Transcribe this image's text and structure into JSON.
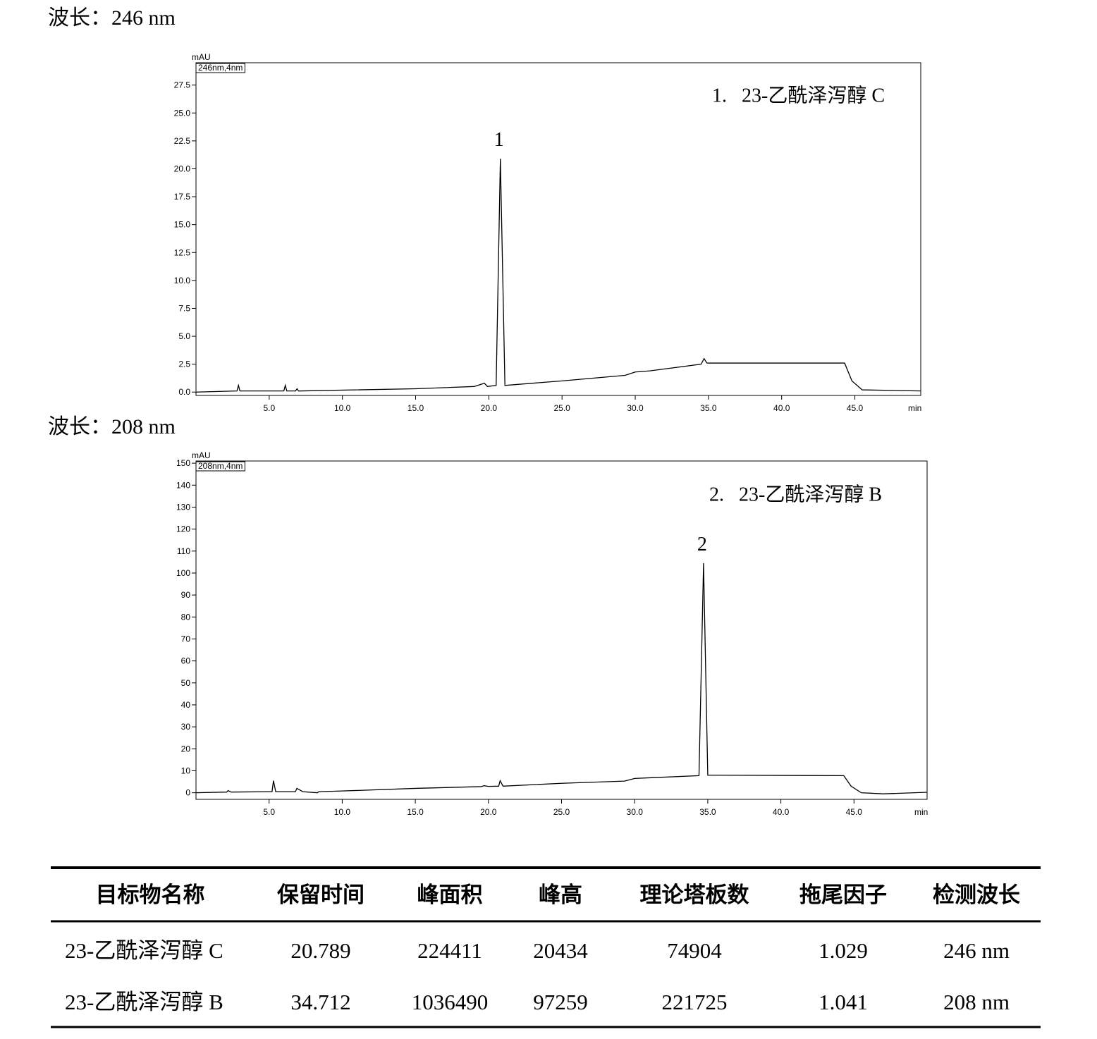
{
  "chart_data": [
    {
      "type": "line",
      "title": "波长：246 nm",
      "y_label": "mAU",
      "x_label": "min",
      "channel": "246nm,4nm",
      "annotation": "1.   23-乙酰泽泻醇 C",
      "peak_label": "1",
      "color": "#000000",
      "x": [
        0,
        2.8,
        2.9,
        3.0,
        6.0,
        6.1,
        6.2,
        6.8,
        6.9,
        7.0,
        15,
        19.0,
        19.7,
        19.9,
        20.5,
        20.789,
        21.1,
        25,
        29.3,
        30,
        31,
        34.5,
        34.7,
        34.9,
        35,
        44.3,
        44.8,
        45.5,
        49.5
      ],
      "values": [
        0.0,
        0.1,
        0.6,
        0.1,
        0.1,
        0.6,
        0.1,
        0.1,
        0.3,
        0.1,
        0.3,
        0.5,
        0.8,
        0.5,
        0.6,
        20.9,
        0.6,
        1.0,
        1.5,
        1.8,
        1.9,
        2.5,
        3.0,
        2.6,
        2.6,
        2.6,
        1.0,
        0.2,
        0.1
      ],
      "xlim": [
        0,
        49.5
      ],
      "ylim": [
        -0.3,
        29.5
      ],
      "xticks": [
        {
          "value": 5,
          "label": "5.0"
        },
        {
          "value": 10,
          "label": "10.0"
        },
        {
          "value": 15,
          "label": "15.0"
        },
        {
          "value": 20,
          "label": "20.0"
        },
        {
          "value": 25,
          "label": "25.0"
        },
        {
          "value": 30,
          "label": "30.0"
        },
        {
          "value": 35,
          "label": "35.0"
        },
        {
          "value": 40,
          "label": "40.0"
        },
        {
          "value": 45,
          "label": "45.0"
        }
      ],
      "yticks": [
        {
          "value": 0,
          "label": "0.0"
        },
        2.5,
        {
          "value": 5,
          "label": "5.0"
        },
        7.5,
        {
          "value": 10,
          "label": "10.0"
        },
        12.5,
        {
          "value": 15,
          "label": "15.0"
        },
        17.5,
        {
          "value": 20,
          "label": "20.0"
        },
        22.5,
        {
          "value": 25,
          "label": "25.0"
        },
        27.5
      ]
    },
    {
      "type": "line",
      "title": "波长：208 nm",
      "y_label": "mAU",
      "x_label": "min",
      "channel": "208nm,4nm",
      "annotation": "2.   23-乙酰泽泻醇 B",
      "peak_label": "2",
      "color": "#000000",
      "x": [
        0,
        2.1,
        2.2,
        2.4,
        5.2,
        5.3,
        5.45,
        6.8,
        6.9,
        7.3,
        8.3,
        8.4,
        10,
        15,
        19.5,
        19.7,
        20,
        20.7,
        20.8,
        21,
        25,
        29.3,
        30,
        31,
        34.4,
        34.712,
        35.0,
        44.3,
        44.8,
        45.5,
        47,
        50
      ],
      "values": [
        0,
        0.3,
        1.0,
        0.3,
        0.5,
        5.5,
        0.5,
        0.5,
        2.0,
        0.5,
        0,
        0.5,
        0.8,
        2,
        2.8,
        3.2,
        2.9,
        3.0,
        5.5,
        3.0,
        4.3,
        5.3,
        6.5,
        6.8,
        7.8,
        104.5,
        8.0,
        7.8,
        3,
        0,
        -0.5,
        0.2
      ],
      "xlim": [
        0,
        50
      ],
      "ylim": [
        -3,
        151
      ],
      "xticks": [
        {
          "value": 5,
          "label": "5.0"
        },
        {
          "value": 10,
          "label": "10.0"
        },
        {
          "value": 15,
          "label": "15.0"
        },
        {
          "value": 20,
          "label": "20.0"
        },
        {
          "value": 25,
          "label": "25.0"
        },
        {
          "value": 30,
          "label": "30.0"
        },
        {
          "value": 35,
          "label": "35.0"
        },
        {
          "value": 40,
          "label": "40.0"
        },
        {
          "value": 45,
          "label": "45.0"
        }
      ],
      "yticks": [
        0,
        10,
        20,
        30,
        40,
        50,
        60,
        70,
        80,
        90,
        100,
        110,
        120,
        130,
        140,
        150
      ]
    }
  ],
  "table": {
    "header": [
      "目标物名称",
      "保留时间",
      "峰面积",
      "峰高",
      "理论塔板数",
      "拖尾因子",
      "检测波长"
    ],
    "rows": [
      [
        "23-乙酰泽泻醇 C",
        "20.789",
        "224411",
        "20434",
        "74904",
        "1.029",
        "246 nm"
      ],
      [
        "23-乙酰泽泻醇 B",
        "34.712",
        "1036490",
        "97259",
        "221725",
        "1.041",
        "208 nm"
      ]
    ]
  }
}
